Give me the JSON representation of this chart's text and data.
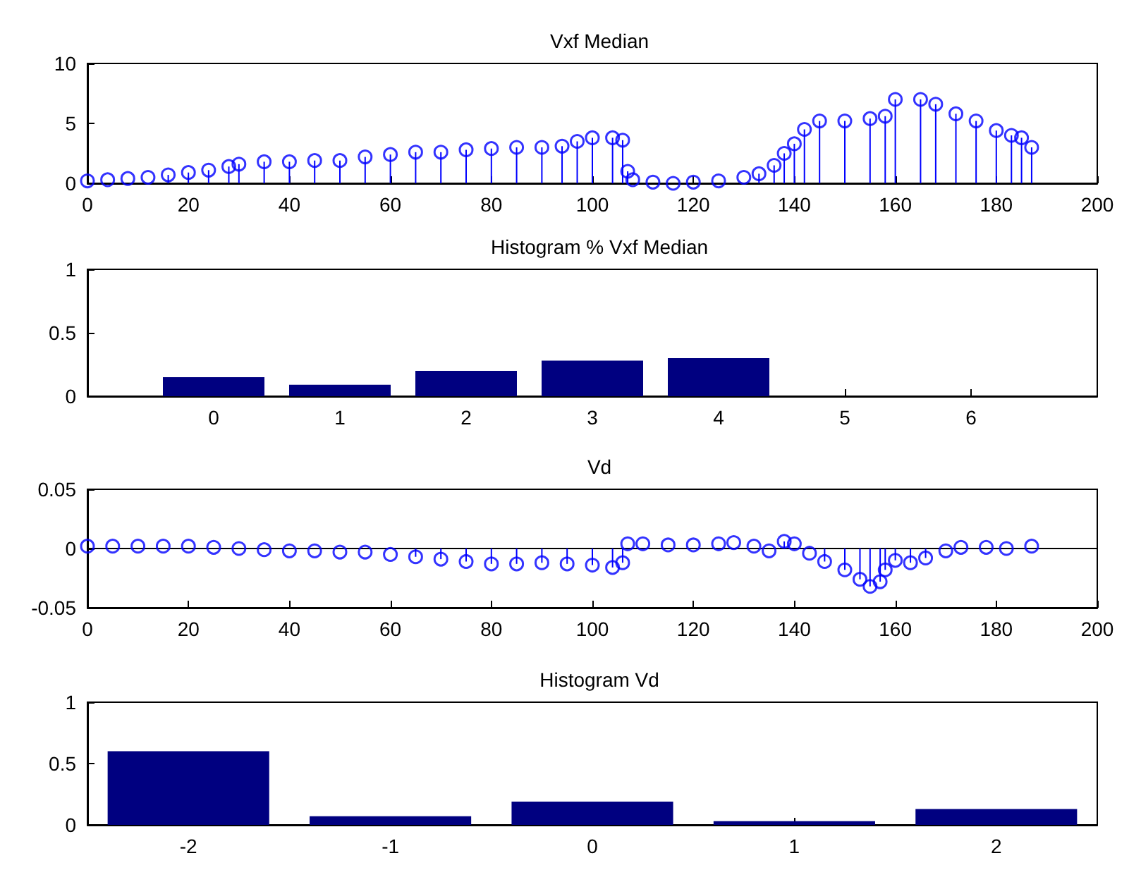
{
  "chart_data": [
    {
      "type": "lollipop",
      "title": "Vxf Median",
      "marker": "circle",
      "xlim": [
        0,
        200
      ],
      "xticks": [
        0,
        20,
        40,
        60,
        80,
        100,
        120,
        140,
        160,
        180,
        200
      ],
      "ylim": [
        0,
        10
      ],
      "yticks": [
        0,
        5,
        10
      ],
      "series": [
        {
          "color": "#0000ff",
          "x": [
            0,
            4,
            8,
            12,
            16,
            20,
            24,
            28,
            30,
            35,
            40,
            45,
            50,
            55,
            60,
            65,
            70,
            75,
            80,
            85,
            90,
            94,
            97,
            100,
            104,
            106,
            107,
            108,
            112,
            116,
            120,
            125,
            130,
            133,
            136,
            138,
            140,
            142,
            145,
            150,
            155,
            158,
            160,
            165,
            168,
            172,
            176,
            180,
            183,
            185,
            187
          ],
          "values": [
            0.2,
            0.3,
            0.4,
            0.5,
            0.7,
            0.9,
            1.1,
            1.4,
            1.6,
            1.8,
            1.8,
            1.9,
            1.9,
            2.2,
            2.4,
            2.6,
            2.6,
            2.8,
            2.9,
            3.0,
            3.0,
            3.1,
            3.5,
            3.8,
            3.8,
            3.6,
            1.0,
            0.3,
            0.1,
            0.0,
            0.1,
            0.2,
            0.5,
            0.8,
            1.5,
            2.5,
            3.3,
            4.5,
            5.2,
            5.2,
            5.4,
            5.6,
            7.0,
            7.0,
            6.6,
            5.8,
            5.2,
            4.4,
            4.0,
            3.8,
            3.0
          ]
        }
      ]
    },
    {
      "type": "bar",
      "title": "Histogram % Vxf Median",
      "x": [
        0,
        1,
        2,
        3,
        4,
        5,
        6
      ],
      "xlim": [
        -1,
        7
      ],
      "xticks": [
        0,
        1,
        2,
        3,
        4,
        5,
        6
      ],
      "ylim": [
        0,
        1
      ],
      "yticks": [
        0,
        0.5,
        1
      ],
      "series": [
        {
          "color": "#000080",
          "values": [
            0.15,
            0.09,
            0.2,
            0.28,
            0.3,
            0,
            0
          ]
        }
      ]
    },
    {
      "type": "lollipop",
      "title": "Vd",
      "marker": "circle",
      "xlim": [
        0,
        200
      ],
      "xticks": [
        0,
        20,
        40,
        60,
        80,
        100,
        120,
        140,
        160,
        180,
        200
      ],
      "ylim": [
        -0.05,
        0.05
      ],
      "yticks": [
        -0.05,
        0,
        0.05
      ],
      "ref_lines": [
        {
          "axis": "y",
          "value": 0,
          "color": "#000000"
        }
      ],
      "series": [
        {
          "color": "#0000ff",
          "x": [
            0,
            5,
            10,
            15,
            20,
            25,
            30,
            35,
            40,
            45,
            50,
            55,
            60,
            65,
            70,
            75,
            80,
            85,
            90,
            95,
            100,
            104,
            106,
            107,
            110,
            115,
            120,
            125,
            128,
            132,
            135,
            138,
            140,
            143,
            146,
            150,
            153,
            155,
            157,
            158,
            160,
            163,
            166,
            170,
            173,
            178,
            182,
            187
          ],
          "values": [
            0.002,
            0.002,
            0.002,
            0.002,
            0.002,
            0.001,
            0.0,
            -0.001,
            -0.002,
            -0.002,
            -0.003,
            -0.003,
            -0.005,
            -0.007,
            -0.009,
            -0.011,
            -0.013,
            -0.013,
            -0.012,
            -0.013,
            -0.014,
            -0.016,
            -0.012,
            0.004,
            0.004,
            0.003,
            0.003,
            0.004,
            0.005,
            0.002,
            -0.002,
            0.006,
            0.004,
            -0.004,
            -0.011,
            -0.018,
            -0.026,
            -0.032,
            -0.028,
            -0.018,
            -0.01,
            -0.012,
            -0.008,
            -0.002,
            0.001,
            0.001,
            0.0,
            0.002
          ]
        }
      ]
    },
    {
      "type": "bar",
      "title": "Histogram Vd",
      "categories": [
        "-2",
        "-1",
        "0",
        "1",
        "2"
      ],
      "ylim": [
        0,
        1
      ],
      "yticks": [
        0,
        0.5,
        1
      ],
      "series": [
        {
          "color": "#000080",
          "values": [
            0.6,
            0.07,
            0.19,
            0.03,
            0.13
          ]
        }
      ]
    }
  ]
}
